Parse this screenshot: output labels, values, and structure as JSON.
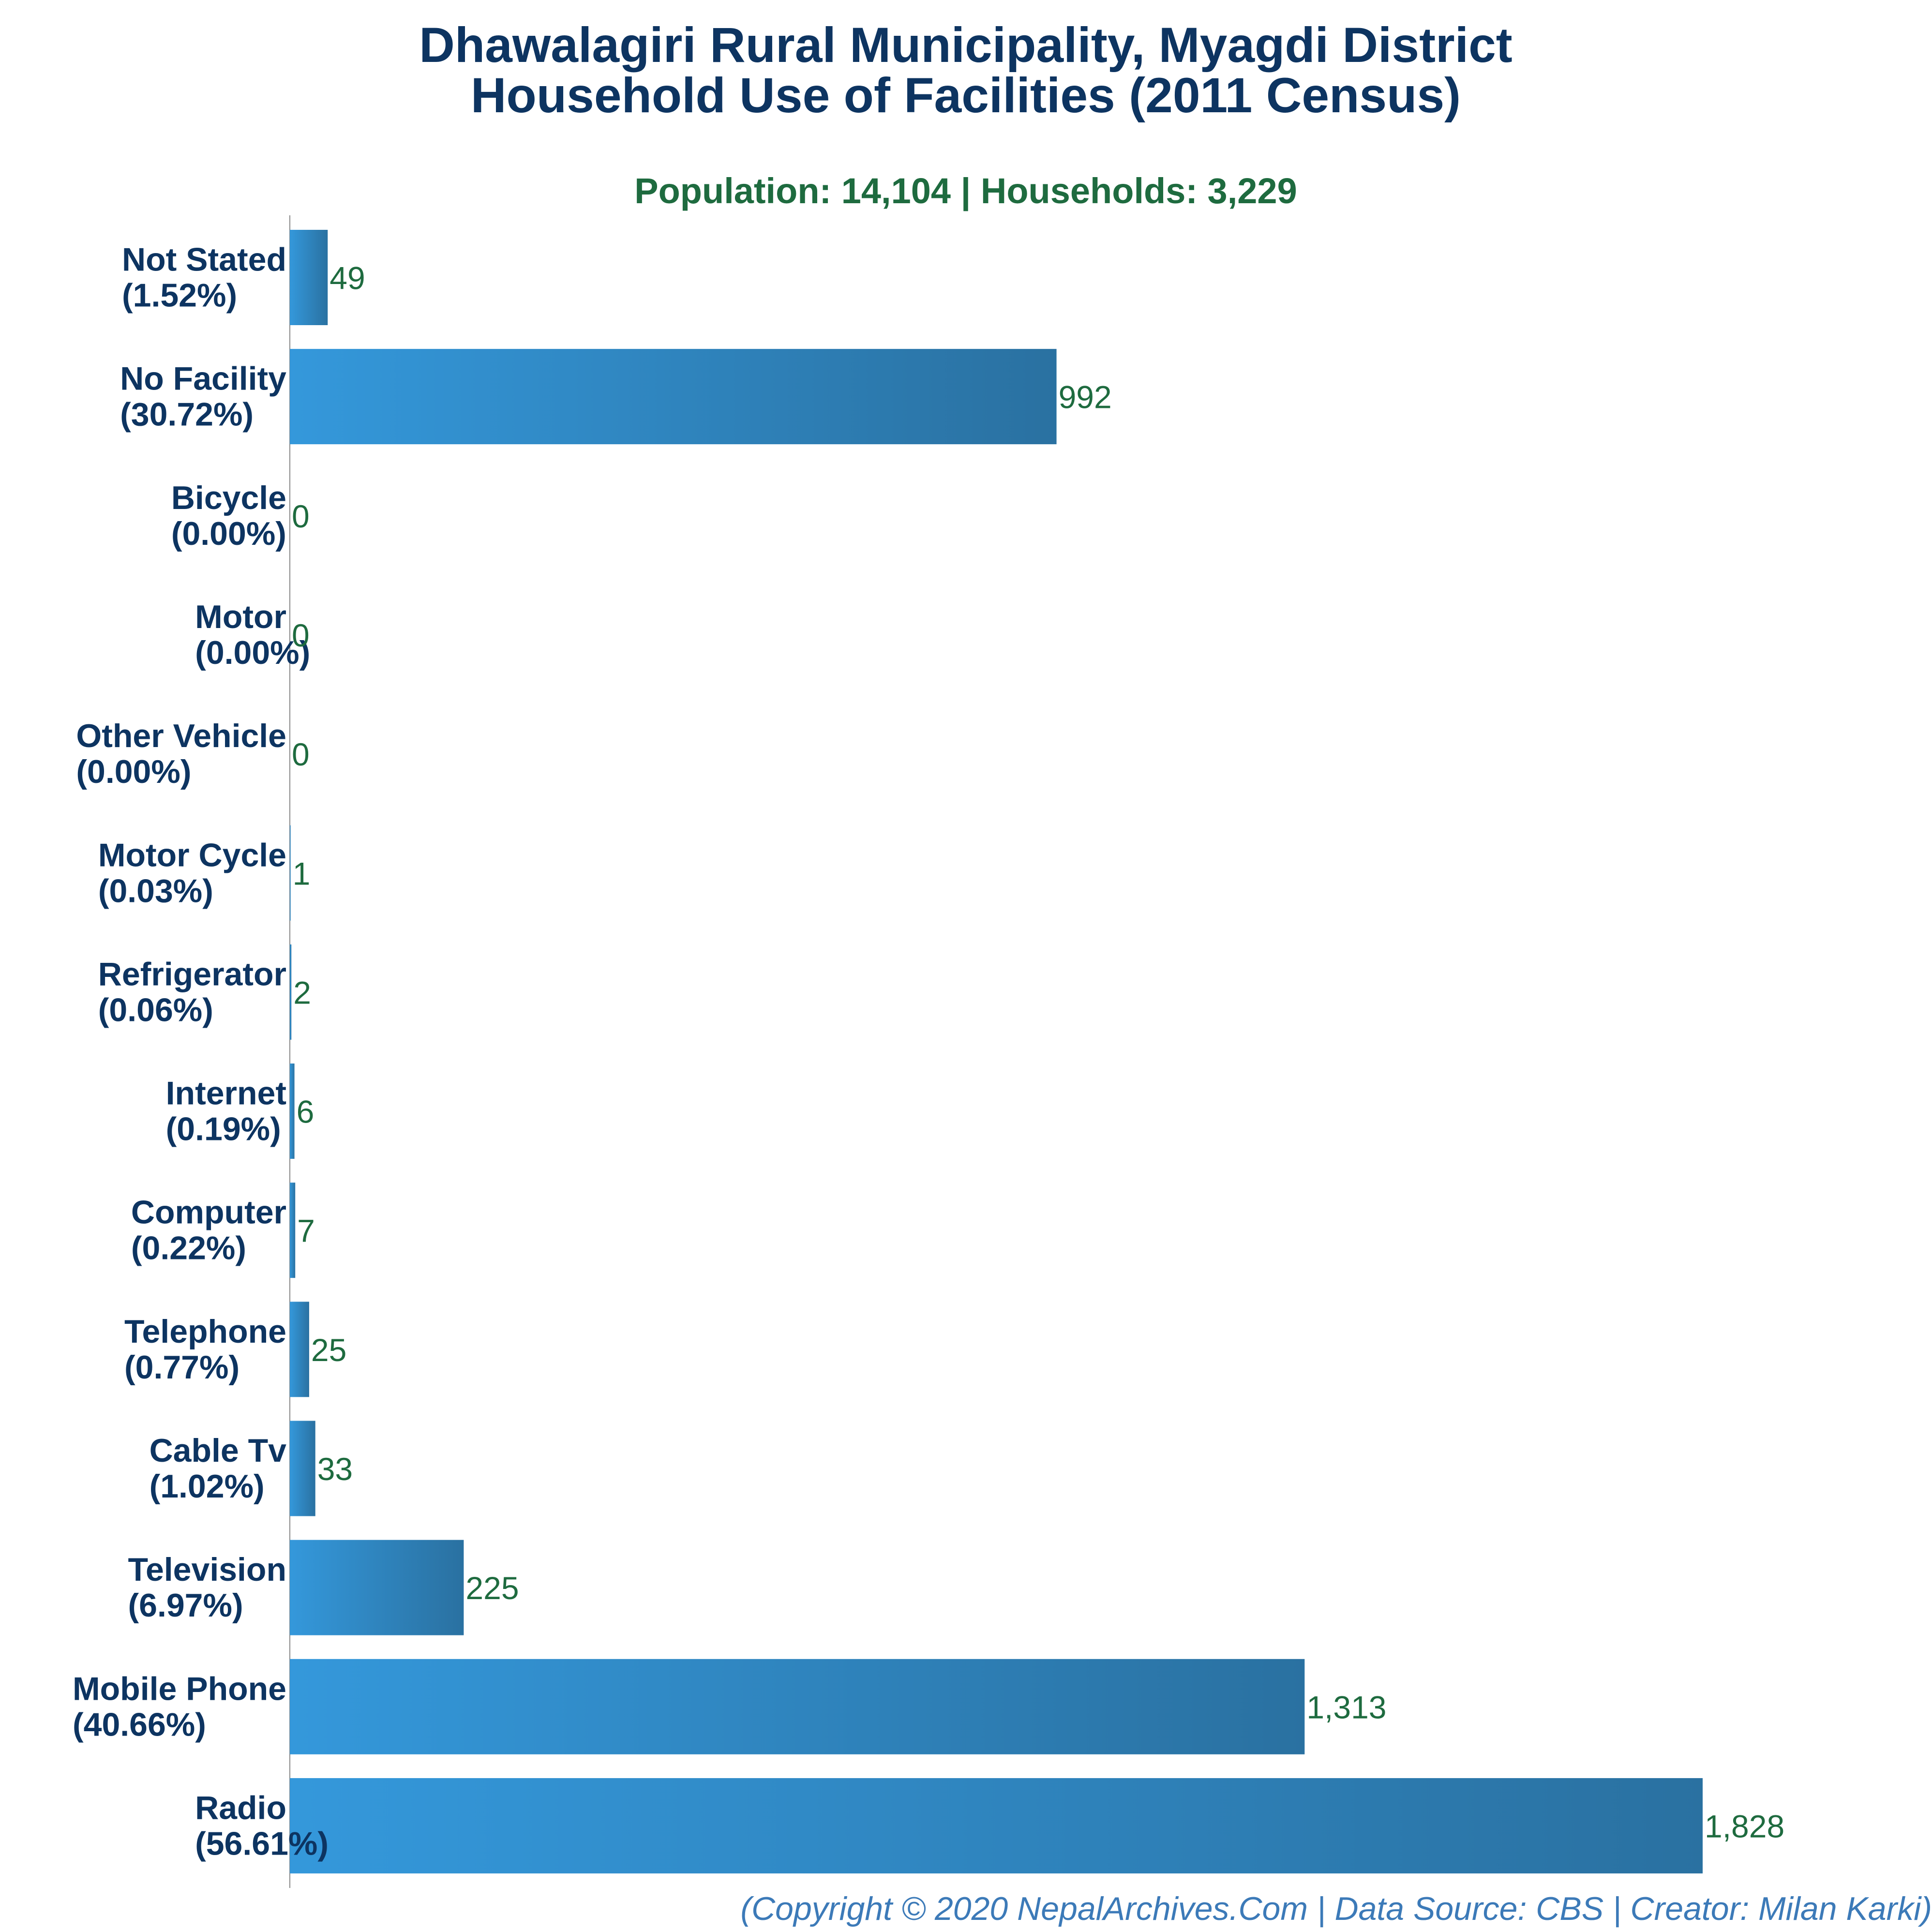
{
  "chart_data": {
    "type": "bar",
    "orientation": "horizontal",
    "title": "Dhawalagiri Rural Municipality, Myagdi District",
    "title_line2": "Household Use of Facilities (2011 Census)",
    "subtitle": "Population: 14,104 | Households: 3,229",
    "xlabel": "",
    "ylabel": "",
    "grid": false,
    "legend": "none",
    "categories": [
      "Not Stated",
      "No Facility",
      "Bicycle",
      "Motor",
      "Other Vehicle",
      "Motor Cycle",
      "Refrigerator",
      "Internet",
      "Computer",
      "Telephone",
      "Cable Tv",
      "Television",
      "Mobile Phone",
      "Radio"
    ],
    "percent_labels": [
      "(1.52%)",
      "(30.72%)",
      "(0.00%)",
      "(0.00%)",
      "(0.00%)",
      "(0.03%)",
      "(0.06%)",
      "(0.19%)",
      "(0.22%)",
      "(0.77%)",
      "(1.02%)",
      "(6.97%)",
      "(40.66%)",
      "(56.61%)"
    ],
    "values": [
      49,
      992,
      0,
      0,
      0,
      1,
      2,
      6,
      7,
      25,
      33,
      225,
      1313,
      1828
    ],
    "value_labels": [
      "49",
      "992",
      "0",
      "0",
      "0",
      "1",
      "2",
      "6",
      "7",
      "25",
      "33",
      "225",
      "1,313",
      "1,828"
    ],
    "xlim": [
      0,
      1828
    ],
    "colors": {
      "bar_light": "#3498db",
      "bar_dark": "#2a71a1",
      "title": "#0d3461",
      "subtitle": "#1e6b3f",
      "value_label": "#1e6b3f",
      "footer": "#3c7ab8"
    }
  },
  "footer": {
    "credit": "(Copyright © 2020 NepalArchives.Com | Data Source: CBS | Creator: Milan Karki)"
  }
}
